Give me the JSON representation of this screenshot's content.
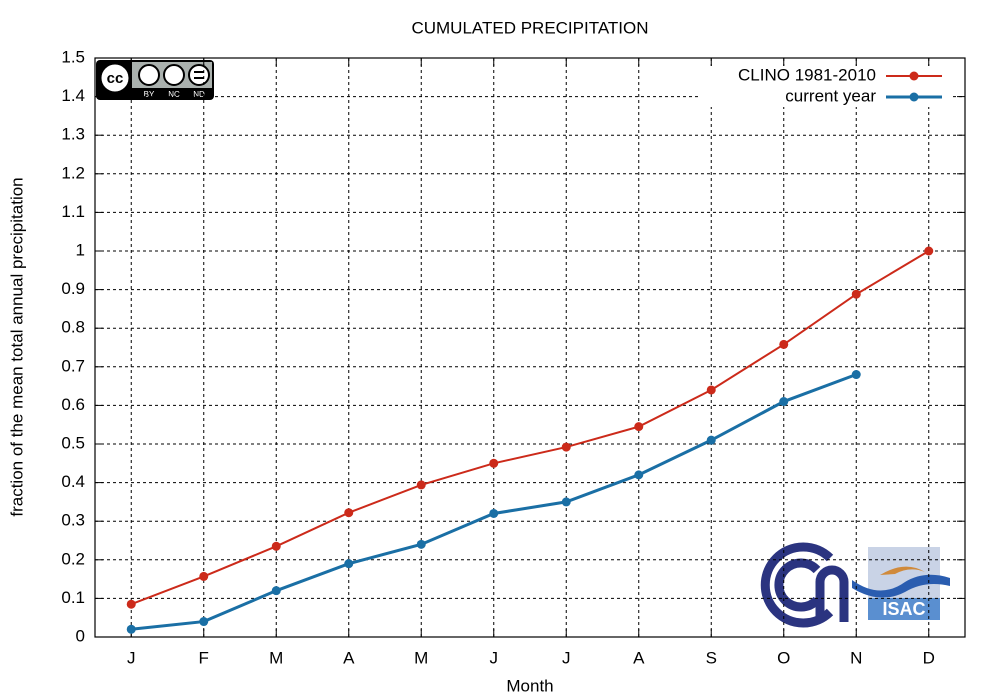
{
  "chart_data": {
    "type": "line",
    "title": "CUMULATED PRECIPITATION",
    "xlabel": "Month",
    "ylabel": "fraction of the mean total annual precipitation",
    "categories": [
      "J",
      "F",
      "M",
      "A",
      "M",
      "J",
      "J",
      "A",
      "S",
      "O",
      "N",
      "D"
    ],
    "series": [
      {
        "name": "CLINO 1981-2010",
        "color": "#cc2a1a",
        "values": [
          0.085,
          0.157,
          0.235,
          0.322,
          0.394,
          0.45,
          0.492,
          0.545,
          0.64,
          0.758,
          0.888,
          1
        ]
      },
      {
        "name": "current year",
        "color": "#1a6fa5",
        "values": [
          0.02,
          0.04,
          0.12,
          0.19,
          0.24,
          0.32,
          0.35,
          0.42,
          0.51,
          0.61,
          0.68,
          null
        ]
      }
    ],
    "ylim": [
      0,
      1.5
    ],
    "yticks": [
      0,
      0.1,
      0.2,
      0.3,
      0.4,
      0.5,
      0.6,
      0.7,
      0.8,
      0.9,
      1,
      1.1,
      1.2,
      1.3,
      1.4,
      1.5
    ],
    "grid": true,
    "legend": "top-right",
    "annotations": [
      "cc",
      "BY",
      "NC",
      "ND",
      "ISAC"
    ]
  }
}
